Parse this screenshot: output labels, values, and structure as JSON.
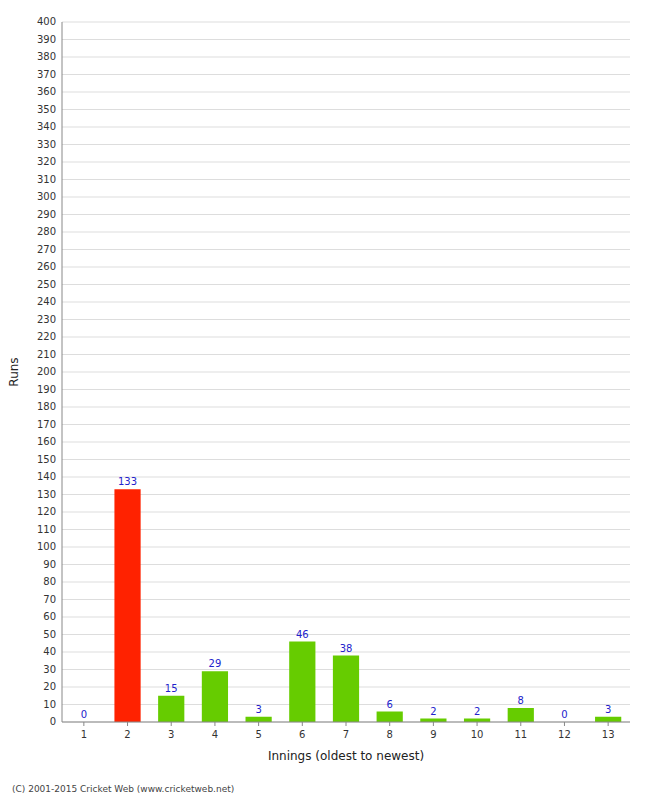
{
  "chart_data": {
    "type": "bar",
    "categories": [
      "1",
      "2",
      "3",
      "4",
      "5",
      "6",
      "7",
      "8",
      "9",
      "10",
      "11",
      "12",
      "13"
    ],
    "values": [
      0,
      133,
      15,
      29,
      3,
      46,
      38,
      6,
      2,
      2,
      8,
      0,
      3
    ],
    "colors": [
      "#66cc00",
      "#ff2200",
      "#66cc00",
      "#66cc00",
      "#66cc00",
      "#66cc00",
      "#66cc00",
      "#66cc00",
      "#66cc00",
      "#66cc00",
      "#66cc00",
      "#66cc00",
      "#66cc00"
    ],
    "x_label": "Innings (oldest to newest)",
    "y_label": "Runs",
    "ylim": [
      0,
      400
    ],
    "yticks": [
      0,
      10,
      20,
      30,
      40,
      50,
      60,
      70,
      80,
      90,
      100,
      110,
      120,
      130,
      140,
      150,
      160,
      170,
      180,
      190,
      200,
      210,
      220,
      230,
      240,
      250,
      260,
      270,
      280,
      290,
      300,
      310,
      320,
      330,
      340,
      350,
      360,
      370,
      380,
      390,
      400
    ],
    "grid": true,
    "data_labels": true,
    "annotations": [
      "(C) 2001-2015 Cricket Web (www.cricketweb.net)"
    ]
  }
}
